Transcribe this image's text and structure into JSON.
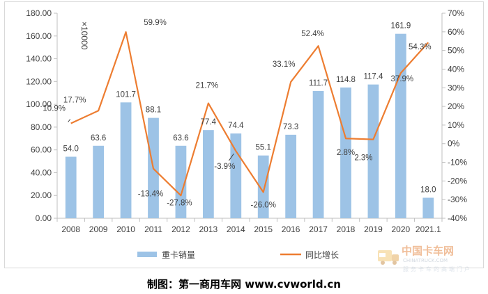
{
  "caption": "制图：第一商用车网 www.cvworld.cn",
  "watermark": {
    "brand": "中国卡车网",
    "brand_latin": "CHINATRUCK.COM",
    "tagline": "服务卡车的高端门户"
  },
  "colors": {
    "bar": "#9dc3e6",
    "line": "#ed7d31",
    "axis": "#bfbfbf",
    "text": "#404040"
  },
  "chart_data": {
    "type": "bar",
    "categories": [
      "2008",
      "2009",
      "2010",
      "2011",
      "2012",
      "2013",
      "2014",
      "2015",
      "2016",
      "2017",
      "2018",
      "2019",
      "2020",
      "2021.1"
    ],
    "series": [
      {
        "name": "重卡销量",
        "type": "bar",
        "axis": "left",
        "values": [
          54.0,
          63.6,
          101.7,
          88.1,
          63.6,
          77.4,
          74.4,
          55.1,
          73.3,
          111.7,
          114.8,
          117.4,
          161.9,
          18.0
        ],
        "labels": [
          "54.0",
          "63.6",
          "101.7",
          "88.1",
          "63.6",
          "77.4",
          "74.4",
          "55.1",
          "73.3",
          "111.7",
          "114.8",
          "117.4",
          "161.9",
          "18.0"
        ]
      },
      {
        "name": "同比增长",
        "type": "line",
        "axis": "right",
        "values": [
          10.9,
          17.7,
          59.9,
          -13.4,
          -27.8,
          21.7,
          -3.9,
          -26.0,
          33.1,
          52.4,
          2.8,
          2.3,
          37.9,
          54.3
        ],
        "labels": [
          "10.9%",
          "17.7%",
          "59.9%",
          "-13.4%",
          "-27.8%",
          "21.7%",
          "-3.9%",
          "-26.0%",
          "33.1%",
          "52.4%",
          "2.8%",
          "2.3%",
          "37.9%",
          "54.3%"
        ]
      }
    ],
    "left_axis": {
      "min": 0,
      "max": 180,
      "step": 20,
      "ticks": [
        "0.00",
        "20.00",
        "40.00",
        "60.00",
        "80.00",
        "100.00",
        "120.00",
        "140.00",
        "160.00",
        "180.00"
      ],
      "unit_label": "×10000"
    },
    "right_axis": {
      "min": -40,
      "max": 70,
      "step": 10,
      "ticks": [
        "-40%",
        "-30%",
        "-20%",
        "-10%",
        "0%",
        "10%",
        "20%",
        "30%",
        "40%",
        "50%",
        "60%",
        "70%"
      ]
    },
    "legend": {
      "position": "bottom",
      "items": [
        "重卡销量",
        "同比增长"
      ]
    },
    "grid": false
  }
}
